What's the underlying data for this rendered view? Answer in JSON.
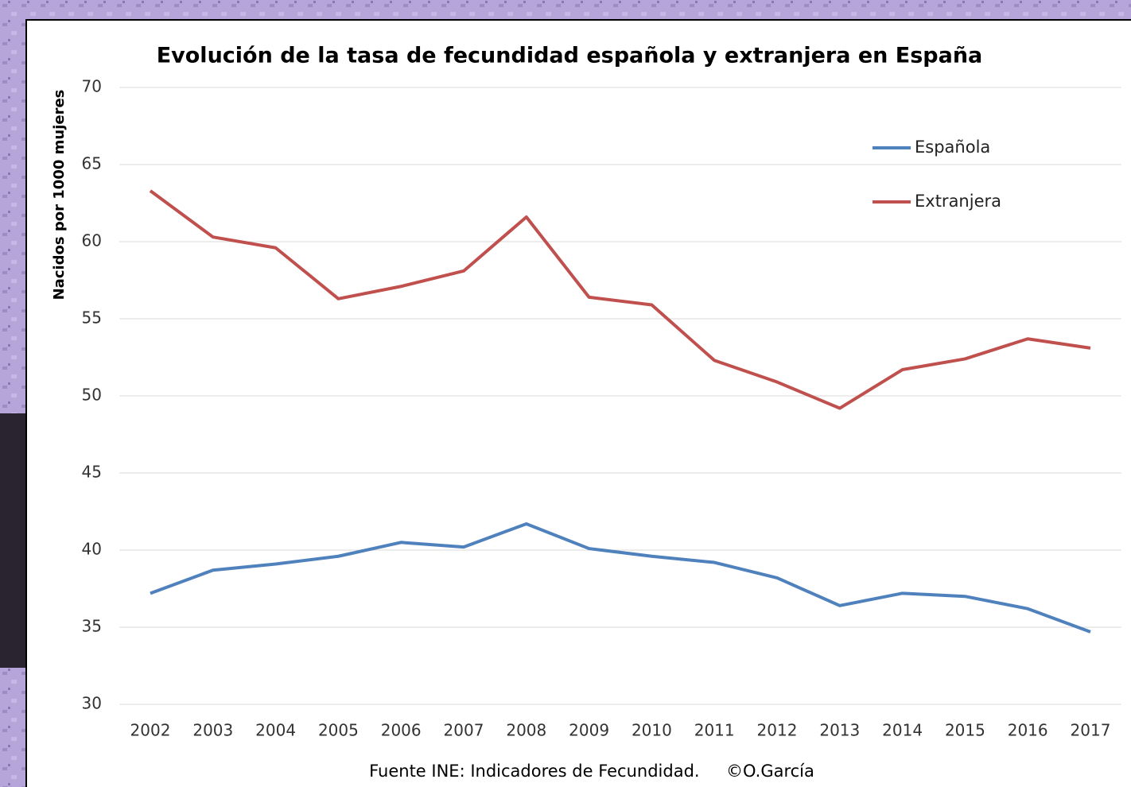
{
  "chart_data": {
    "type": "line",
    "title": "Evolución de la tasa de fecundidad española y extranjera en España",
    "y_label": "Nacidos por 1000 mujeres",
    "source": "Fuente INE: Indicadores de Fecundidad.     ©O.García",
    "categories": [
      "2002",
      "2003",
      "2004",
      "2005",
      "2006",
      "2007",
      "2008",
      "2009",
      "2010",
      "2011",
      "2012",
      "2013",
      "2014",
      "2015",
      "2016",
      "2017"
    ],
    "series": [
      {
        "name": "Española",
        "color": "#4f81bd",
        "values": [
          37.2,
          38.7,
          39.1,
          39.6,
          40.5,
          40.2,
          41.7,
          40.1,
          39.6,
          39.2,
          38.2,
          36.4,
          37.2,
          37.0,
          36.2,
          34.7
        ]
      },
      {
        "name": "Extranjera",
        "color": "#c0504d",
        "values": [
          63.3,
          60.3,
          59.6,
          56.3,
          57.1,
          58.1,
          61.6,
          56.4,
          55.9,
          52.3,
          50.9,
          49.2,
          51.7,
          52.4,
          53.7,
          53.1
        ]
      }
    ],
    "ylim": [
      30,
      70
    ],
    "yticks": [
      30,
      35,
      40,
      45,
      50,
      55,
      60,
      65,
      70
    ],
    "grid": true,
    "legend": "upper right"
  }
}
